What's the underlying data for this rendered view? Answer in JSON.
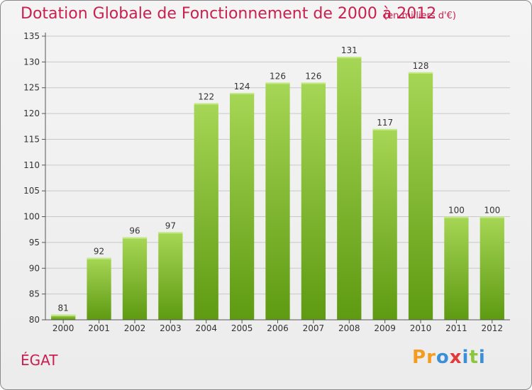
{
  "header": {
    "title": "Dotation Globale de Fonctionnement de 2000 à 2012",
    "unit": "(en milliers d'€)"
  },
  "footer": {
    "commune": "ÉGAT",
    "logo_letters": [
      "P",
      "r",
      "o",
      "x",
      "i",
      "t",
      "i"
    ],
    "logo_colors": [
      "#f39c1f",
      "#f39c1f",
      "#3b8fd8",
      "#e23b3b",
      "#3b8fd8",
      "#8cc63f",
      "#3b8fd8"
    ]
  },
  "colors": {
    "bar_light": "#a6d655",
    "bar_dark": "#5e9a12",
    "title": "#c8204f",
    "grid": "#c8c8c8"
  },
  "chart_data": {
    "type": "bar",
    "title": "Dotation Globale de Fonctionnement de 2000 à 2012",
    "subtitle": "(en milliers d'€)",
    "categories": [
      "2000",
      "2001",
      "2002",
      "2003",
      "2004",
      "2005",
      "2006",
      "2007",
      "2008",
      "2009",
      "2010",
      "2011",
      "2012"
    ],
    "values": [
      81,
      92,
      96,
      97,
      122,
      124,
      126,
      126,
      131,
      117,
      128,
      100,
      100
    ],
    "ylim": [
      80,
      135
    ],
    "yticks": [
      80,
      85,
      90,
      95,
      100,
      105,
      110,
      115,
      120,
      125,
      130,
      135
    ],
    "grid": true
  }
}
